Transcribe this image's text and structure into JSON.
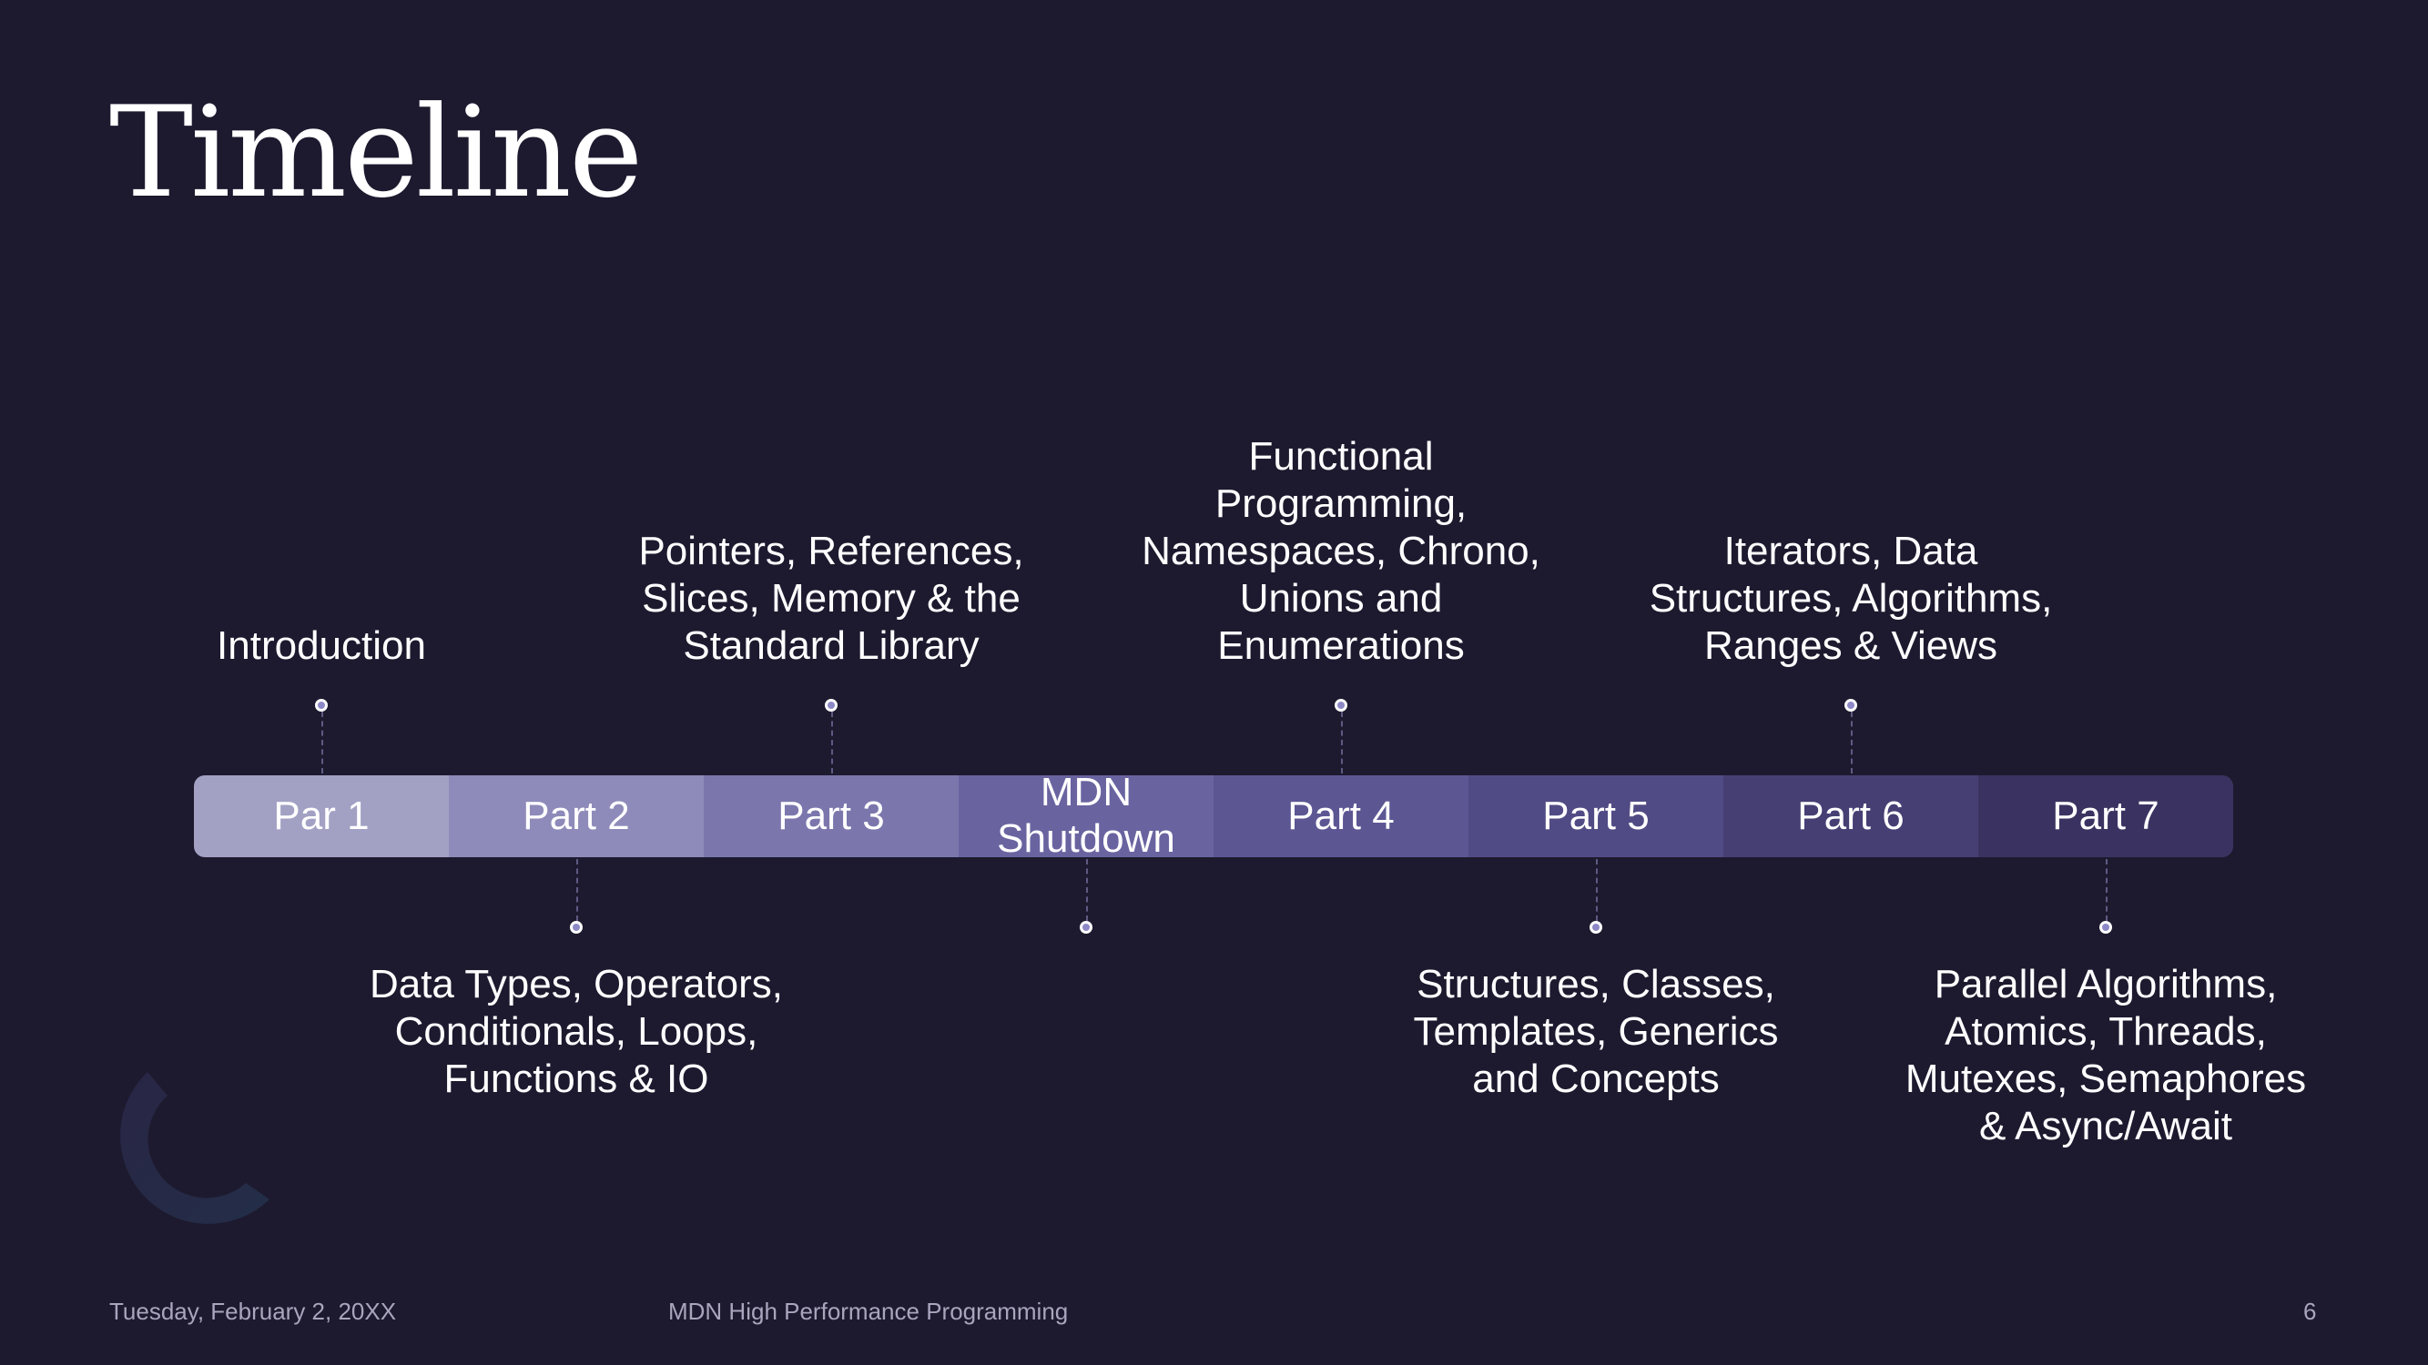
{
  "slide": {
    "title": "Timeline",
    "segments": [
      {
        "label": "Par 1",
        "color": "#a2a1c4"
      },
      {
        "label": "Part 2",
        "color": "#8e8bba"
      },
      {
        "label": "Part 3",
        "color": "#7b77ad"
      },
      {
        "label": "MDN\nShutdown",
        "color": "#6964a0"
      },
      {
        "label": "Part 4",
        "color": "#5c5793"
      },
      {
        "label": "Part 5",
        "color": "#514b85"
      },
      {
        "label": "Part 6",
        "color": "#463f74"
      },
      {
        "label": "Part 7",
        "color": "#3a3361"
      }
    ],
    "top_labels": [
      "Introduction",
      "Pointers, References,\nSlices, Memory & the\nStandard Library",
      "Functional\nProgramming,\nNamespaces, Chrono,\nUnions and\nEnumerations",
      "Iterators, Data\nStructures, Algorithms,\nRanges & Views"
    ],
    "bottom_labels": [
      "Data Types, Operators,\nConditionals, Loops,\nFunctions & IO",
      "",
      "Structures, Classes,\nTemplates, Generics\nand Concepts",
      "Parallel Algorithms,\nAtomics, Threads,\nMutexes, Semaphores\n& Async/Await"
    ],
    "footer": {
      "date": "Tuesday, February 2, 20XX",
      "course": "MDN High Performance Programming",
      "page_number": "6"
    }
  }
}
